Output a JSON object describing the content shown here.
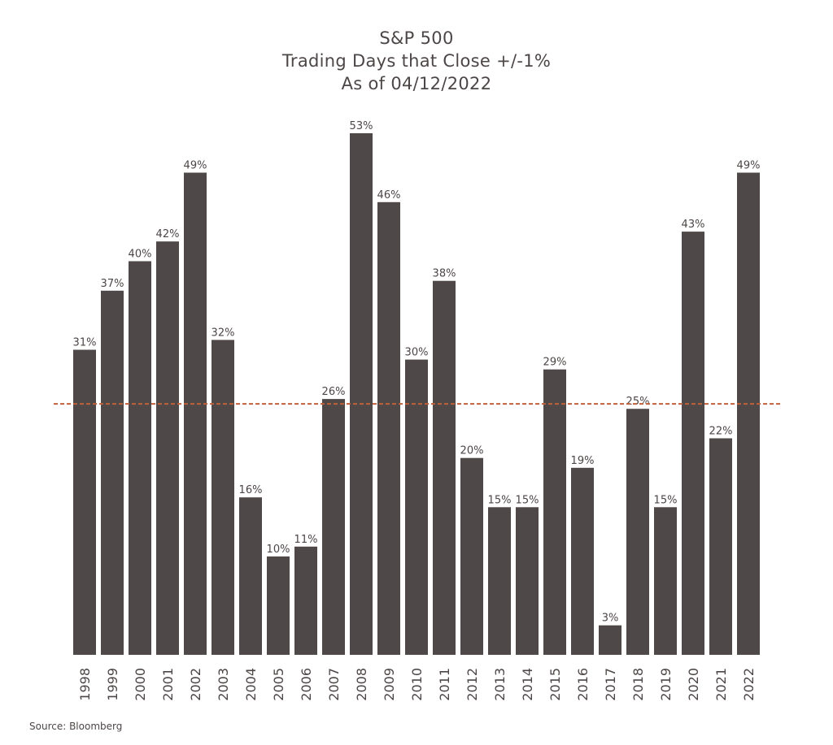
{
  "chart_data": {
    "type": "bar",
    "title_lines": [
      "S&P 500",
      "Trading Days that Close +/-1%",
      "As of 04/12/2022"
    ],
    "categories": [
      "1998",
      "1999",
      "2000",
      "2001",
      "2002",
      "2003",
      "2004",
      "2005",
      "2006",
      "2007",
      "2008",
      "2009",
      "2010",
      "2011",
      "2012",
      "2013",
      "2014",
      "2015",
      "2016",
      "2017",
      "2018",
      "2019",
      "2020",
      "2021",
      "2022"
    ],
    "values": [
      31,
      37,
      40,
      42,
      49,
      32,
      16,
      10,
      11,
      26,
      53,
      46,
      30,
      38,
      20,
      15,
      15,
      29,
      19,
      3,
      25,
      15,
      43,
      22,
      49
    ],
    "value_labels": [
      "31%",
      "37%",
      "40%",
      "42%",
      "49%",
      "32%",
      "16%",
      "10%",
      "11%",
      "26%",
      "53%",
      "46%",
      "30%",
      "38%",
      "20%",
      "15%",
      "15%",
      "29%",
      "19%",
      "3%",
      "25%",
      "15%",
      "43%",
      "22%",
      "49%"
    ],
    "reference_line": 25.5,
    "ylim": [
      0,
      53
    ],
    "grid": false,
    "bar_color": "#4f4848",
    "reference_line_color": "#c0603a",
    "text_color": "#4d4646",
    "source": "Source: Bloomberg"
  }
}
